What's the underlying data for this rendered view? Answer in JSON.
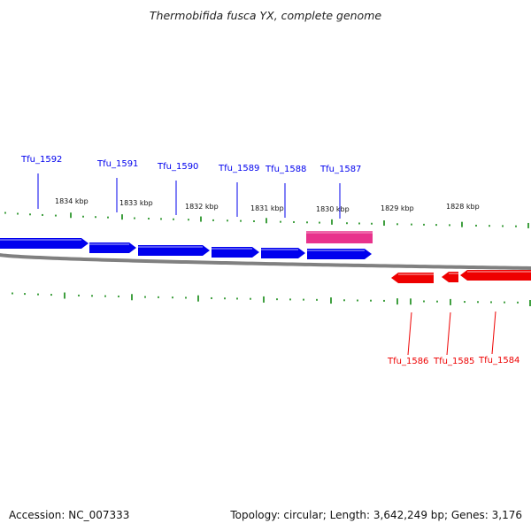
{
  "title": "Thermobifida fusca YX, complete genome",
  "footer": {
    "accession": "Accession: NC_007333",
    "topology": "Topology: circular; Length: 3,642,249 bp; Genes: 3,176"
  },
  "colors": {
    "forward": "#0000ee",
    "reverse": "#ee0000",
    "highlight": "#e8328c",
    "tick": "#118811",
    "backbone": "#808080"
  },
  "kbp_labels": [
    "1834 kbp",
    "1833 kbp",
    "1832 kbp",
    "1831 kbp",
    "1830 kbp",
    "1829 kbp",
    "1828 kbp"
  ],
  "genes_forward": [
    "Tfu_1592",
    "Tfu_1591",
    "Tfu_1590",
    "Tfu_1589",
    "Tfu_1588",
    "Tfu_1587"
  ],
  "genes_reverse": [
    "Tfu_1586",
    "Tfu_1585",
    "Tfu_1584"
  ]
}
